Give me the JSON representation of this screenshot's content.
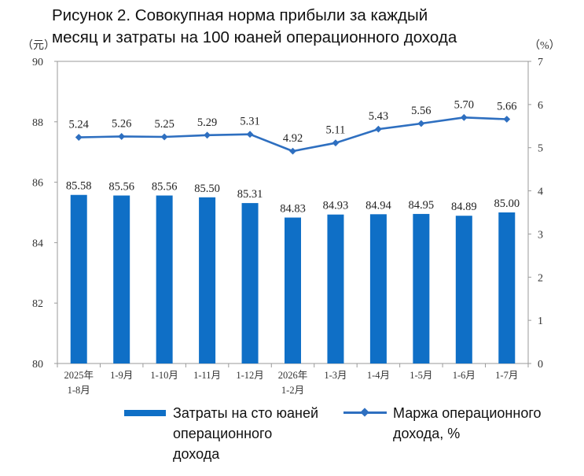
{
  "title": {
    "line1": "Рисунок 2. Совокупная норма прибыли за каждый",
    "line2": "месяц и затраты на 100 юаней операционного дохода"
  },
  "chart_data": {
    "type": "bar+line",
    "left_axis_unit": "（元）",
    "right_axis_unit": "（%）",
    "left_ylim": [
      80,
      90
    ],
    "left_ticks": [
      "80",
      "82",
      "84",
      "86",
      "88",
      "90"
    ],
    "right_ylim": [
      0,
      7
    ],
    "right_ticks": [
      "0",
      "1",
      "2",
      "3",
      "4",
      "5",
      "6",
      "7"
    ],
    "categories": [
      [
        "2025年",
        "1-8月"
      ],
      [
        "1-9月"
      ],
      [
        "1-10月"
      ],
      [
        "1-11月"
      ],
      [
        "1-12月"
      ],
      [
        "2026年",
        "1-2月"
      ],
      [
        "1-3月"
      ],
      [
        "1-4月"
      ],
      [
        "1-5月"
      ],
      [
        "1-6月"
      ],
      [
        "1-7月"
      ]
    ],
    "series": [
      {
        "name_lines": [
          "Затраты на сто юаней",
          "операционного",
          "дохода"
        ],
        "type": "bar",
        "axis": "left",
        "color": "#0f6fc6",
        "values": [
          85.58,
          85.56,
          85.56,
          85.5,
          85.31,
          84.83,
          84.93,
          84.94,
          84.95,
          84.89,
          85.0
        ],
        "labels": [
          "85.58",
          "85.56",
          "85.56",
          "85.50",
          "85.31",
          "84.83",
          "84.93",
          "84.94",
          "84.95",
          "84.89",
          "85.00"
        ]
      },
      {
        "name_lines": [
          "Маржа операционного",
          "дохода, %"
        ],
        "type": "line",
        "axis": "right",
        "color": "#2e6fc0",
        "values": [
          5.24,
          5.26,
          5.25,
          5.29,
          5.31,
          4.92,
          5.11,
          5.43,
          5.56,
          5.7,
          5.66
        ],
        "labels": [
          "5.24",
          "5.26",
          "5.25",
          "5.29",
          "5.31",
          "4.92",
          "5.11",
          "5.43",
          "5.56",
          "5.70",
          "5.66"
        ]
      }
    ],
    "grid": false,
    "legend_position": "bottom"
  }
}
